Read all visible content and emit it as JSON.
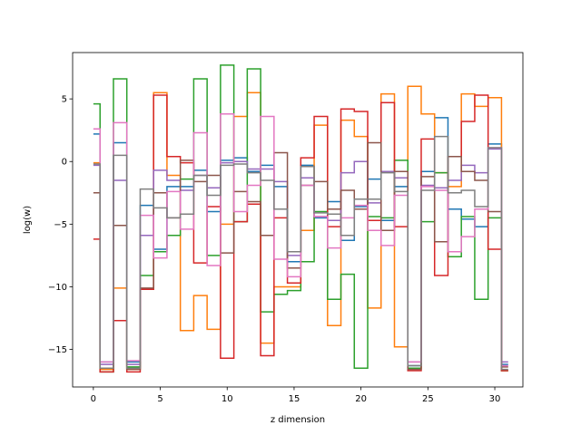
{
  "chart_data": {
    "type": "line",
    "drawstyle": "steps",
    "title": "",
    "xlabel": "z dimension",
    "ylabel": "log(w)",
    "xlim": [
      -1.55,
      32.1
    ],
    "ylim": [
      -18.0,
      8.7
    ],
    "xticks": [
      0,
      5,
      10,
      15,
      20,
      25,
      30
    ],
    "yticks": [
      -15,
      -10,
      -5,
      0,
      5
    ],
    "grid": false,
    "legend": "none",
    "x": [
      0,
      1,
      2,
      3,
      4,
      5,
      6,
      7,
      8,
      9,
      10,
      11,
      12,
      13,
      14,
      15,
      16,
      17,
      18,
      19,
      20,
      21,
      22,
      23,
      24,
      25,
      26,
      27,
      28,
      29,
      30,
      31
    ],
    "series": [
      {
        "color": "#1f77b4",
        "values": [
          2.2,
          -16.0,
          1.5,
          -16.0,
          -3.5,
          -7.0,
          -2.0,
          -2.0,
          -0.7,
          -4.0,
          0.1,
          0.3,
          -0.8,
          -0.3,
          -2.0,
          -8.0,
          -0.3,
          -4.5,
          -3.2,
          -6.3,
          -3.6,
          -1.4,
          -4.7,
          -2.0,
          -16.3,
          -0.8,
          3.5,
          -3.8,
          -4.6,
          -5.2,
          1.4,
          -16.2
        ]
      },
      {
        "color": "#ff7f0e",
        "values": [
          -0.1,
          -16.6,
          -10.1,
          -16.6,
          -10.2,
          5.5,
          -1.1,
          -13.5,
          -10.7,
          -13.4,
          -5.0,
          3.6,
          5.5,
          -14.5,
          -10.0,
          -10.0,
          -5.5,
          2.9,
          -13.1,
          3.3,
          2.0,
          -11.7,
          5.4,
          -14.8,
          6.0,
          3.8,
          -0.9,
          -2.0,
          5.4,
          4.4,
          5.1,
          -16.7
        ]
      },
      {
        "color": "#2ca02c",
        "values": [
          4.6,
          -16.8,
          6.6,
          -16.4,
          -9.1,
          -7.2,
          -5.9,
          -1.4,
          6.6,
          -7.5,
          7.7,
          -4.8,
          7.4,
          -12.0,
          -10.6,
          -10.3,
          -8.0,
          -4.0,
          -11.0,
          -9.0,
          -16.5,
          -4.4,
          -4.5,
          0.1,
          -16.5,
          -4.8,
          -0.9,
          -7.6,
          -4.4,
          -11.0,
          -4.5,
          -16.7
        ]
      },
      {
        "color": "#d62728",
        "values": [
          -6.2,
          -16.8,
          -12.7,
          -16.8,
          -10.2,
          5.3,
          0.4,
          -0.1,
          -8.1,
          -3.6,
          -15.7,
          -4.8,
          -3.4,
          -15.5,
          -4.5,
          -9.7,
          0.3,
          3.6,
          -5.2,
          4.2,
          4.0,
          -4.7,
          4.7,
          -5.2,
          -16.7,
          1.8,
          -9.1,
          0.4,
          3.2,
          5.3,
          -7.0,
          -16.7
        ]
      },
      {
        "color": "#9467bd",
        "values": [
          -0.3,
          -16.2,
          -1.5,
          -16.2,
          -5.9,
          -0.7,
          -1.5,
          -2.3,
          -1.1,
          -2.1,
          -0.1,
          0.0,
          -0.6,
          -0.6,
          -1.6,
          -7.5,
          -1.3,
          -4.4,
          -4.7,
          -0.9,
          0.0,
          -3.3,
          -0.8,
          -1.3,
          -16.0,
          -1.9,
          -2.1,
          -1.5,
          -0.3,
          -0.9,
          1.0,
          -16.0
        ]
      },
      {
        "color": "#8c564b",
        "values": [
          -2.5,
          -16.5,
          -5.1,
          -16.6,
          -10.1,
          -2.5,
          -4.5,
          0.1,
          -1.6,
          -1.1,
          -7.3,
          -2.4,
          -3.2,
          -5.9,
          0.7,
          -8.5,
          -1.9,
          -1.6,
          -3.8,
          -2.3,
          -3.8,
          1.5,
          -5.5,
          -0.8,
          -16.6,
          -1.2,
          -6.4,
          0.4,
          -0.8,
          -1.5,
          -4.0,
          -16.4
        ]
      },
      {
        "color": "#e377c2",
        "values": [
          2.6,
          -16.0,
          3.1,
          -15.9,
          -4.3,
          -7.7,
          -2.4,
          -5.4,
          2.3,
          -8.3,
          3.8,
          -4.0,
          -1.9,
          3.6,
          -7.8,
          -9.2,
          -1.9,
          -4.4,
          -6.9,
          -4.5,
          -3.5,
          -5.5,
          -6.7,
          -2.7,
          -16.0,
          -2.0,
          -2.3,
          -7.2,
          -6.0,
          -3.8,
          1.1,
          -16.3
        ]
      },
      {
        "color": "#7f7f7f",
        "values": [
          -0.2,
          -16.5,
          0.5,
          -16.5,
          -2.2,
          -3.7,
          -4.5,
          -4.2,
          -1.1,
          -2.7,
          -0.3,
          -0.2,
          -0.9,
          -1.5,
          -3.8,
          -7.2,
          -0.4,
          -4.1,
          -4.2,
          -5.9,
          -3.0,
          -3.0,
          -0.9,
          -2.4,
          -16.3,
          -2.3,
          2.0,
          -2.5,
          -2.3,
          -3.6,
          1.1,
          -16.6
        ]
      }
    ]
  }
}
